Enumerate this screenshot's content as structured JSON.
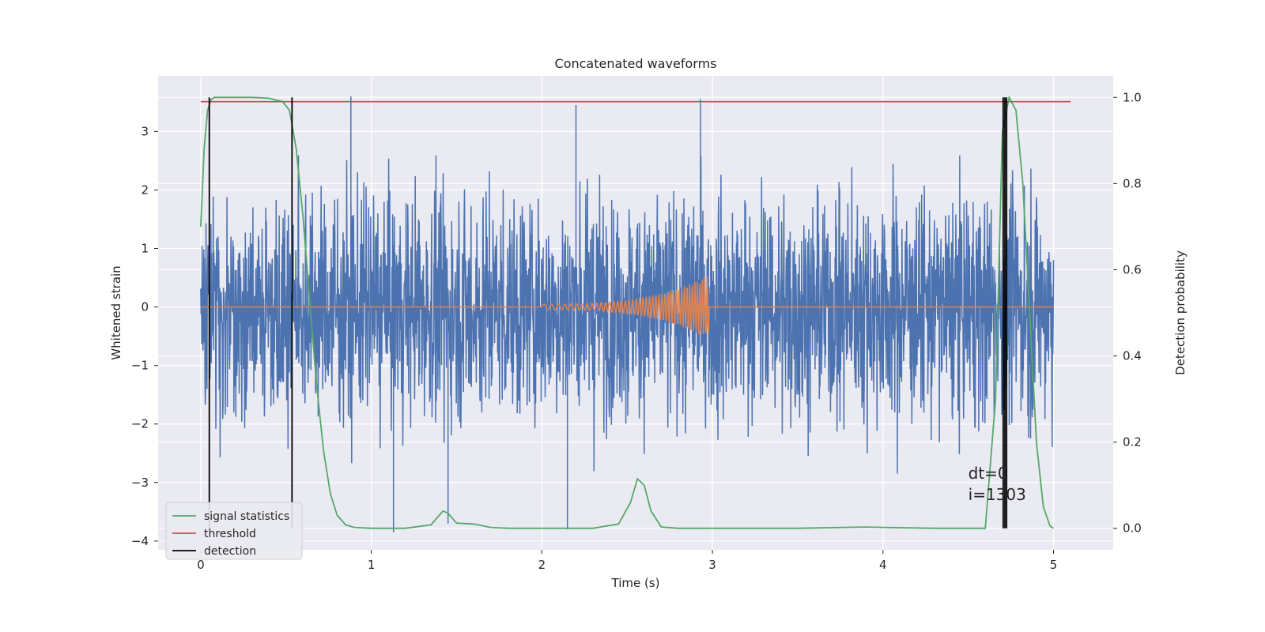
{
  "chart_data": {
    "type": "line",
    "title": "Concatenated waveforms",
    "xlabel": "Time (s)",
    "ylabel": "Whitened strain",
    "y2label": "Detection probability",
    "xlim": [
      -0.25,
      5.35
    ],
    "ylim": [
      -4.15,
      3.95
    ],
    "y2lim": [
      -0.05,
      1.05
    ],
    "x_ticks": [
      0,
      1,
      2,
      3,
      4,
      5
    ],
    "x_tick_labels": [
      "0",
      "1",
      "2",
      "3",
      "4",
      "5"
    ],
    "y_ticks": [
      -4,
      -3,
      -2,
      -1,
      0,
      1,
      2,
      3
    ],
    "y_tick_labels": [
      "−4",
      "−3",
      "−2",
      "−1",
      "0",
      "1",
      "2",
      "3"
    ],
    "y2_ticks": [
      0.0,
      0.2,
      0.4,
      0.6,
      0.8,
      1.0
    ],
    "y2_tick_labels": [
      "0.0",
      "0.2",
      "0.4",
      "0.6",
      "0.8",
      "1.0"
    ],
    "grid": true,
    "legend_position": "lower-left",
    "colors": {
      "strain": "#4c72b0",
      "injection": "#dd8452",
      "signal_statistics": "#55a868",
      "threshold": "#c44e52",
      "detection": "#000000",
      "background": "#eaeaf2"
    },
    "series": [
      {
        "name": "",
        "axis": "left",
        "description_type": "noise",
        "x_range": [
          0,
          5
        ],
        "amplitude_envelope": [
          -3.9,
          3.6
        ],
        "peak_spikes": [
          [
            0.88,
            3.6
          ],
          [
            2.2,
            3.45
          ],
          [
            2.93,
            3.55
          ],
          [
            1.13,
            -3.85
          ],
          [
            1.45,
            -3.7
          ],
          [
            2.15,
            -3.8
          ]
        ]
      },
      {
        "name": "",
        "axis": "left",
        "description_type": "chirp",
        "x_range": [
          0,
          5
        ],
        "chirp_start": 2.0,
        "chirp_end": 2.98,
        "peak_amplitude": 0.55
      },
      {
        "name": "signal statistics",
        "axis": "right",
        "x": [
          0,
          0.02,
          0.04,
          0.06,
          0.08,
          0.1,
          0.2,
          0.3,
          0.4,
          0.48,
          0.52,
          0.56,
          0.6,
          0.64,
          0.68,
          0.72,
          0.76,
          0.8,
          0.85,
          0.9,
          1.0,
          1.2,
          1.35,
          1.42,
          1.45,
          1.5,
          1.6,
          1.7,
          1.8,
          2.0,
          2.3,
          2.45,
          2.52,
          2.56,
          2.6,
          2.64,
          2.7,
          2.8,
          3.0,
          3.5,
          3.9,
          4.0,
          4.3,
          4.6,
          4.66,
          4.7,
          4.74,
          4.78,
          4.82,
          4.86,
          4.9,
          4.94,
          4.98,
          5.0
        ],
        "values": [
          0.7,
          0.88,
          0.97,
          0.995,
          1.0,
          1.0,
          1.0,
          1.0,
          0.998,
          0.99,
          0.97,
          0.88,
          0.72,
          0.52,
          0.33,
          0.18,
          0.08,
          0.03,
          0.008,
          0.002,
          0.0,
          0.0,
          0.008,
          0.04,
          0.035,
          0.012,
          0.01,
          0.002,
          0.0,
          0.0,
          0.0,
          0.01,
          0.06,
          0.115,
          0.1,
          0.04,
          0.003,
          0.0,
          0.0,
          0.0,
          0.003,
          0.002,
          0.0,
          0.0,
          0.3,
          0.92,
          1.0,
          0.97,
          0.8,
          0.5,
          0.2,
          0.05,
          0.005,
          0.0
        ]
      },
      {
        "name": "threshold",
        "axis": "right",
        "x": [
          0,
          5.1
        ],
        "values": [
          0.99,
          0.99
        ]
      }
    ],
    "detections": {
      "name": "detection",
      "axis": "right",
      "x": [
        0.05,
        0.535,
        4.705,
        4.715,
        4.725
      ],
      "y_range": [
        0.0,
        1.0
      ]
    },
    "annotation": {
      "lines": [
        "dt=0",
        "i=1303"
      ],
      "x": 4.5,
      "y": 0.1
    },
    "legend": [
      "signal statistics",
      "threshold",
      "detection"
    ]
  }
}
